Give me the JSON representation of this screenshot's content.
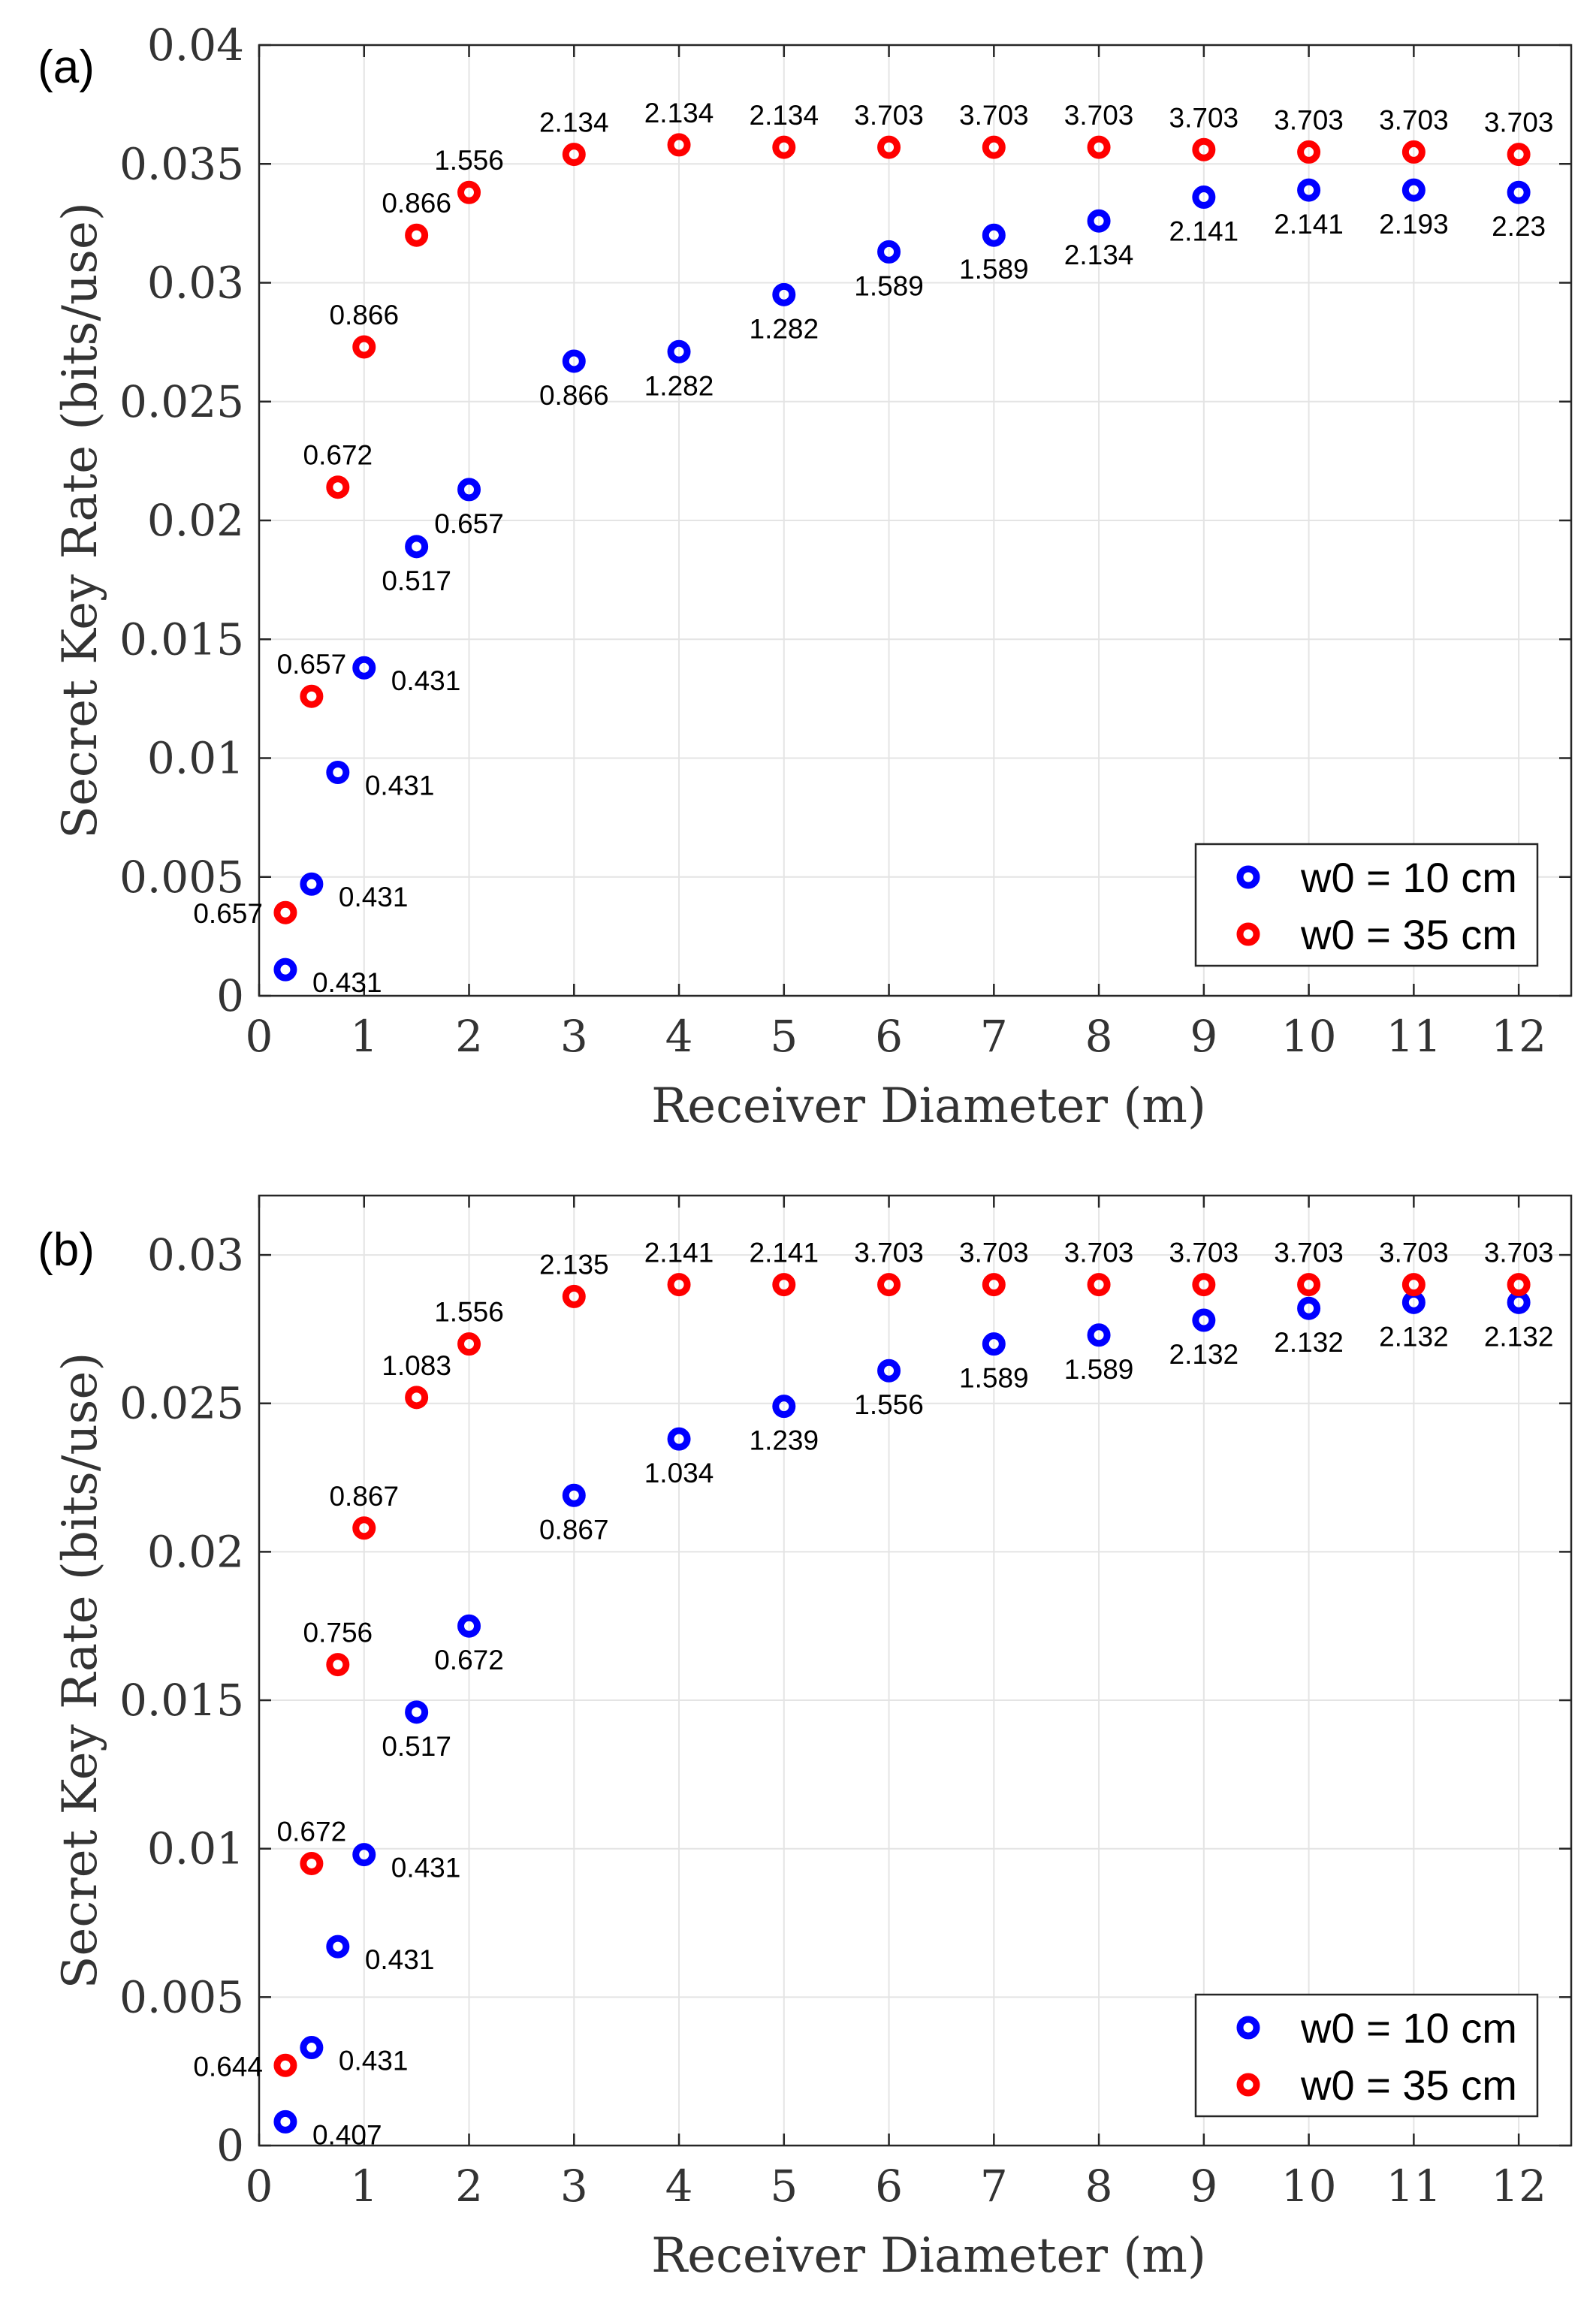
{
  "colors": {
    "series1": "#0000ff",
    "series2": "#ff0000",
    "text": "#000000"
  },
  "chart_data": [
    {
      "type": "scatter",
      "panel_label": "(a)",
      "xlabel": "Receiver Diameter (m)",
      "ylabel": "Secret Key Rate (bits/use)",
      "xlim": [
        0,
        12.5
      ],
      "ylim": [
        0,
        0.04
      ],
      "xticks": [
        0,
        1,
        2,
        3,
        4,
        5,
        6,
        7,
        8,
        9,
        10,
        11,
        12
      ],
      "yticks": [
        0,
        0.005,
        0.01,
        0.015,
        0.02,
        0.025,
        0.03,
        0.035,
        0.04
      ],
      "ytick_labels": [
        "0",
        "0.005",
        "0.01",
        "0.015",
        "0.02",
        "0.025",
        "0.03",
        "0.035",
        "0.04"
      ],
      "grid": true,
      "legend_position": "bottom-right",
      "series": [
        {
          "name": "w0 = 10 cm",
          "color": "#0000ff",
          "label_side": "below",
          "x": [
            0.25,
            0.5,
            0.75,
            1,
            1.5,
            2,
            3,
            4,
            5,
            6,
            7,
            8,
            9,
            10,
            11,
            12
          ],
          "y": [
            0.0011,
            0.0047,
            0.0094,
            0.0138,
            0.0189,
            0.0213,
            0.0267,
            0.0271,
            0.0295,
            0.0313,
            0.032,
            0.0326,
            0.0336,
            0.0339,
            0.0339,
            0.0338
          ],
          "labels": [
            "0.431",
            "0.431",
            "0.431",
            "0.431",
            "0.517",
            "0.657",
            "0.866",
            "1.282",
            "1.282",
            "1.589",
            "1.589",
            "2.134",
            "2.141",
            "2.141",
            "2.193",
            "2.23"
          ]
        },
        {
          "name": "w0 = 35 cm",
          "color": "#ff0000",
          "label_side": "above",
          "x": [
            0.25,
            0.5,
            0.75,
            1,
            1.5,
            2,
            3,
            4,
            5,
            6,
            7,
            8,
            9,
            10,
            11,
            12
          ],
          "y": [
            0.0035,
            0.0126,
            0.0214,
            0.0273,
            0.032,
            0.0338,
            0.0354,
            0.0358,
            0.0357,
            0.0357,
            0.0357,
            0.0357,
            0.0356,
            0.0355,
            0.0355,
            0.0354
          ],
          "labels": [
            "0.657",
            "0.657",
            "0.672",
            "0.866",
            "0.866",
            "1.556",
            "2.134",
            "2.134",
            "2.134",
            "3.703",
            "3.703",
            "3.703",
            "3.703",
            "3.703",
            "3.703",
            "3.703"
          ]
        }
      ]
    },
    {
      "type": "scatter",
      "panel_label": "(b)",
      "xlabel": "Receiver Diameter (m)",
      "ylabel": "Secret Key Rate (bits/use)",
      "xlim": [
        0,
        12.5
      ],
      "ylim": [
        0,
        0.032
      ],
      "xticks": [
        0,
        1,
        2,
        3,
        4,
        5,
        6,
        7,
        8,
        9,
        10,
        11,
        12
      ],
      "yticks": [
        0,
        0.005,
        0.01,
        0.015,
        0.02,
        0.025,
        0.03
      ],
      "ytick_labels": [
        "0",
        "0.005",
        "0.01",
        "0.015",
        "0.02",
        "0.025",
        "0.03"
      ],
      "grid": true,
      "legend_position": "bottom-right",
      "series": [
        {
          "name": "w0 = 10 cm",
          "color": "#0000ff",
          "label_side": "below",
          "x": [
            0.25,
            0.5,
            0.75,
            1,
            1.5,
            2,
            3,
            4,
            5,
            6,
            7,
            8,
            9,
            10,
            11,
            12
          ],
          "y": [
            0.0008,
            0.0033,
            0.0067,
            0.0098,
            0.0146,
            0.0175,
            0.0219,
            0.0238,
            0.0249,
            0.0261,
            0.027,
            0.0273,
            0.0278,
            0.0282,
            0.0284,
            0.0284
          ],
          "labels": [
            "0.407",
            "0.431",
            "0.431",
            "0.431",
            "0.517",
            "0.672",
            "0.867",
            "1.034",
            "1.239",
            "1.556",
            "1.589",
            "1.589",
            "2.132",
            "2.132",
            "2.132",
            "2.132"
          ]
        },
        {
          "name": "w0 = 35 cm",
          "color": "#ff0000",
          "label_side": "above",
          "x": [
            0.25,
            0.5,
            0.75,
            1,
            1.5,
            2,
            3,
            4,
            5,
            6,
            7,
            8,
            9,
            10,
            11,
            12
          ],
          "y": [
            0.0027,
            0.0095,
            0.0162,
            0.0208,
            0.0252,
            0.027,
            0.0286,
            0.029,
            0.029,
            0.029,
            0.029,
            0.029,
            0.029,
            0.029,
            0.029,
            0.029
          ],
          "labels": [
            "0.644",
            "0.672",
            "0.756",
            "0.867",
            "1.083",
            "1.556",
            "2.135",
            "2.141",
            "2.141",
            "3.703",
            "3.703",
            "3.703",
            "3.703",
            "3.703",
            "3.703",
            "3.703"
          ]
        }
      ]
    }
  ]
}
